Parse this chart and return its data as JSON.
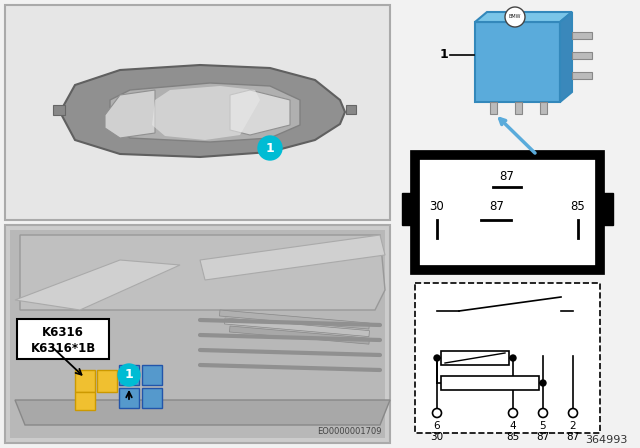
{
  "bg_color": "#f2f2f2",
  "left_panel_color": "#e8e8e8",
  "car_body_color": "#888888",
  "car_roof_color": "#aaaaaa",
  "windshield_color": "#d0d0d0",
  "engine_bg_color": "#c0c0c0",
  "cyan": "#00bcd4",
  "yellow": "#f0c030",
  "blue_relay": "#5599cc",
  "relay_photo_blue": "#5aabdb",
  "white": "#ffffff",
  "black": "#000000",
  "label_k1": "K6316",
  "label_k2": "K6316*1B",
  "eo_number": "EO0000001709",
  "part_number": "364993",
  "pin_top_label": "87",
  "pin_mid_labels": [
    "30",
    "87",
    "85"
  ],
  "pin_bottom_nums": [
    "6",
    "4",
    "5",
    "2"
  ],
  "pin_bottom_names": [
    "30",
    "85",
    "87",
    "87"
  ],
  "relay_label": "1"
}
